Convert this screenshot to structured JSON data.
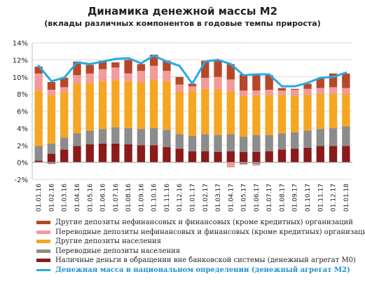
{
  "chart_data": {
    "type": "bar",
    "title": "Динамика денежной массы М2",
    "subtitle": "(вклады различных компонентов в годовые темпы прироста)",
    "ylim": [
      -2,
      14
    ],
    "yticks": [
      "-2%",
      "0%",
      "2%",
      "4%",
      "6%",
      "8%",
      "10%",
      "12%",
      "14%"
    ],
    "grid": true,
    "legend_position": "bottom",
    "categories": [
      "01.01.16",
      "01.02.16",
      "01.03.16",
      "01.04.16",
      "01.05.16",
      "01.06.16",
      "01.07.16",
      "01.08.16",
      "01.09.16",
      "01.10.16",
      "01.11.16",
      "01.12.16",
      "01.01.17",
      "01.02.17",
      "01.03.17",
      "01.04.17",
      "01.05.17",
      "01.06.17",
      "01.07.17",
      "01.08.17",
      "01.09.17",
      "01.10.17",
      "01.11.17",
      "01.12.17",
      "01.01.18"
    ],
    "series": [
      {
        "name": "Наличные деньги в обращении вне банковской системы (денежный агрегат М0)",
        "color": "#8b1a1a",
        "values": [
          0.2,
          1.0,
          1.5,
          1.9,
          2.1,
          2.2,
          2.2,
          2.1,
          2.0,
          2.0,
          1.8,
          1.6,
          1.3,
          1.3,
          1.2,
          1.3,
          1.2,
          1.2,
          1.3,
          1.5,
          1.6,
          1.7,
          1.9,
          1.9,
          1.9
        ]
      },
      {
        "name": "Переводные депозиты населения",
        "color": "#8c8c8c",
        "values": [
          1.7,
          1.2,
          1.4,
          1.5,
          1.6,
          1.7,
          1.9,
          1.9,
          1.9,
          2.0,
          2.0,
          1.7,
          1.8,
          2.0,
          2.0,
          2.0,
          1.8,
          2.0,
          1.9,
          1.9,
          1.9,
          2.0,
          2.0,
          2.1,
          2.3
        ]
      },
      {
        "name": "Другие депозиты населения",
        "color": "#f5a623",
        "values": [
          6.5,
          5.7,
          5.3,
          5.8,
          5.6,
          5.6,
          5.5,
          5.5,
          5.5,
          5.6,
          5.7,
          5.0,
          5.3,
          5.3,
          5.3,
          5.0,
          4.8,
          4.6,
          4.7,
          4.5,
          4.3,
          4.2,
          4.1,
          4.0,
          3.8
        ]
      },
      {
        "name": "Переводные депозиты нефинансовых и финансовых (кроме кредитных)  организаций",
        "color": "#f29b9b",
        "values": [
          2.0,
          0.6,
          0.6,
          1.0,
          1.1,
          1.4,
          1.5,
          0.9,
          1.3,
          1.7,
          1.2,
          0.8,
          0.5,
          1.3,
          1.5,
          1.4,
          0.6,
          0.6,
          0.6,
          0.5,
          0.7,
          0.7,
          0.7,
          0.8,
          0.7
        ]
      },
      {
        "name": "Другие депозиты нефинансовых и финансовых (кроме кредитных)  организаций",
        "color": "#b5482a",
        "values": [
          0.8,
          0.9,
          1.1,
          1.6,
          1.0,
          1.0,
          0.6,
          1.6,
          0.8,
          1.3,
          1.2,
          0.9,
          0.3,
          2.0,
          2.0,
          1.8,
          1.9,
          1.8,
          1.7,
          0.3,
          0.1,
          0.6,
          1.1,
          1.6,
          1.7
        ]
      }
    ],
    "negative_series": [
      {
        "name": "Переводные депозиты населения",
        "values": [
          0,
          -0.2,
          0,
          0,
          0,
          0,
          0,
          0,
          0,
          0,
          0,
          0,
          0,
          0,
          0,
          0,
          -0.2,
          -0.2,
          0,
          0,
          0,
          0,
          0,
          0,
          0
        ]
      },
      {
        "name": "Переводные депозиты нефинансовых и финансовых (кроме кредитных)  организаций",
        "values": [
          0,
          0,
          0,
          0,
          0,
          0,
          0,
          0,
          0,
          0,
          0,
          0,
          0,
          0,
          0,
          -0.6,
          -0.1,
          -0.2,
          0,
          0,
          0,
          0,
          0,
          0,
          0
        ]
      }
    ],
    "line": {
      "name": "Денежная масса в национальном  определении  (денежный агрегат  М2)",
      "color": "#29a9e1",
      "values": [
        11.3,
        9.5,
        9.9,
        11.7,
        11.5,
        11.8,
        12.1,
        12.2,
        11.6,
        12.5,
        11.8,
        11.3,
        9.2,
        11.8,
        12.0,
        11.5,
        10.2,
        10.3,
        10.3,
        8.9,
        8.9,
        9.3,
        9.9,
        10.0,
        10.5
      ]
    }
  },
  "legend": {
    "items": [
      {
        "label": "Другие депозиты нефинансовых и финансовых (кроме кредитных)  организаций",
        "color": "#b5482a",
        "kind": "bar"
      },
      {
        "label": "Переводные депозиты нефинансовых и финансовых (кроме кредитных)  организаций",
        "color": "#f29b9b",
        "kind": "bar"
      },
      {
        "label": "Другие депозиты населения",
        "color": "#f5a623",
        "kind": "bar"
      },
      {
        "label": "Переводные депозиты населения",
        "color": "#8c8c8c",
        "kind": "bar"
      },
      {
        "label": "Наличные деньги в обращении вне банковской системы (денежный агрегат М0)",
        "color": "#8b1a1a",
        "kind": "bar"
      },
      {
        "label": "Денежная масса в национальном  определении  (денежный агрегат  М2)",
        "color": "#29a9e1",
        "kind": "line"
      }
    ]
  }
}
